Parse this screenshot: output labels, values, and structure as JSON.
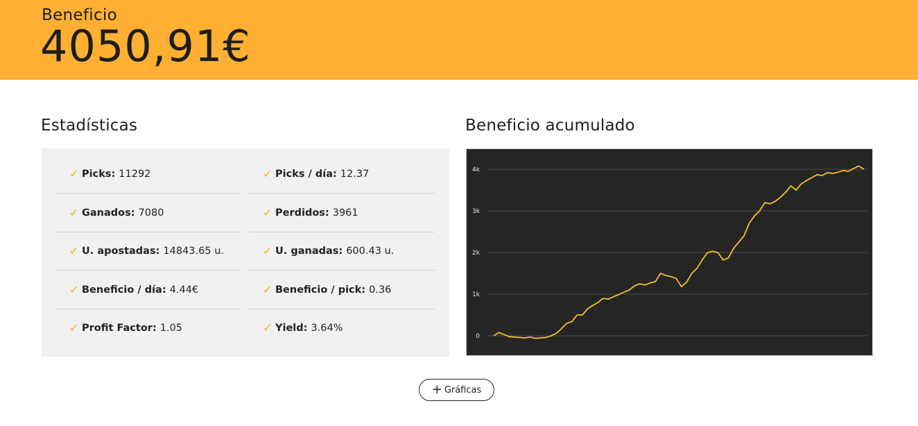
{
  "banner": {
    "label": "Beneficio",
    "value": "4050,91€"
  },
  "stats": {
    "title": "Estadísticas",
    "items": [
      {
        "label": "Picks:",
        "value": "11292"
      },
      {
        "label": "Picks / día:",
        "value": "12.37"
      },
      {
        "label": "Ganados:",
        "value": "7080"
      },
      {
        "label": "Perdidos:",
        "value": "3961"
      },
      {
        "label": "U. apostadas:",
        "value": "14843.65 u."
      },
      {
        "label": "U. ganadas:",
        "value": "600.43 u."
      },
      {
        "label": "Beneficio / día:",
        "value": "4.44€"
      },
      {
        "label": "Beneficio / pick:",
        "value": "0.36"
      },
      {
        "label": "Profit Factor:",
        "value": "1.05"
      },
      {
        "label": "Yield:",
        "value": "3.64%"
      }
    ]
  },
  "chart_section": {
    "title": "Beneficio acumulado"
  },
  "button": {
    "label": "Gráficas",
    "icon": "plus-icon"
  },
  "colors": {
    "accent": "#ffb032",
    "check": "#f5b51a",
    "line": "#f2c230",
    "chart_bg": "#252524"
  },
  "chart_data": {
    "type": "line",
    "title": "Beneficio acumulado",
    "xlabel": "",
    "ylabel": "",
    "ylim": [
      0,
      4000
    ],
    "y_ticks": [
      0,
      1000,
      2000,
      3000,
      4000
    ],
    "y_tick_labels": [
      "0",
      "1k",
      "2k",
      "3k",
      "4k"
    ],
    "grid": true,
    "series": [
      {
        "values": [
          0,
          80,
          30,
          -20,
          -30,
          -40,
          -50,
          -30,
          -60,
          -50,
          -40,
          0,
          60,
          170,
          300,
          340,
          500,
          500,
          650,
          730,
          800,
          900,
          880,
          940,
          990,
          1050,
          1100,
          1200,
          1250,
          1220,
          1270,
          1300,
          1500,
          1450,
          1420,
          1380,
          1180,
          1290,
          1500,
          1620,
          1820,
          2000,
          2030,
          2000,
          1820,
          1870,
          2100,
          2250,
          2400,
          2700,
          2880,
          3000,
          3200,
          3170,
          3230,
          3330,
          3450,
          3600,
          3500,
          3650,
          3730,
          3800,
          3870,
          3850,
          3920,
          3900,
          3930,
          3970,
          3950,
          4020,
          4080,
          4000
        ]
      }
    ]
  }
}
